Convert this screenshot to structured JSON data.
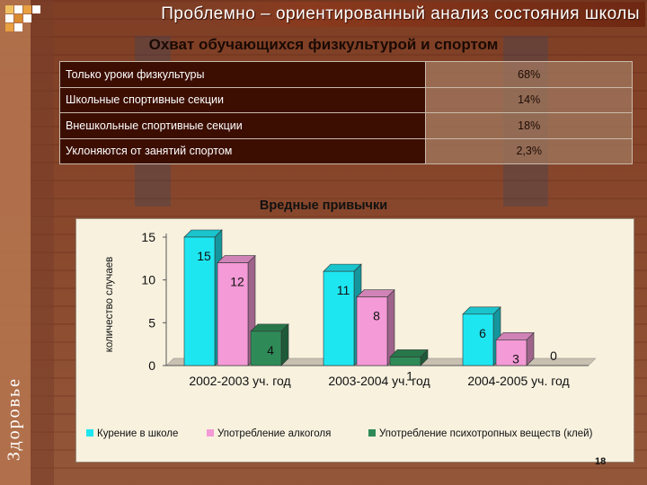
{
  "header": {
    "title": "Проблемно – ориентированный анализ состояния школы",
    "side_text": "Здоровье"
  },
  "coverage": {
    "title": "Охват обучающихся физкультурой и спортом",
    "rows": [
      {
        "label": "Только уроки физкультуры",
        "value": "68%"
      },
      {
        "label": "Школьные спортивные секции",
        "value": "14%"
      },
      {
        "label": "Внешкольные спортивные секции",
        "value": "18%"
      },
      {
        "label": "Уклоняются от занятий спортом",
        "value": "2,3%"
      }
    ]
  },
  "chart_data": {
    "type": "bar",
    "title": "Вредные привычки",
    "xlabel": "",
    "ylabel": "количество случаев",
    "ylim": [
      0,
      15
    ],
    "yticks": [
      0,
      5,
      10,
      15
    ],
    "categories": [
      "2002-2003 уч. год",
      "2003-2004 уч. год",
      "2004-2005 уч. год"
    ],
    "series": [
      {
        "name": "Курение в школе",
        "values": [
          15,
          11,
          6
        ],
        "color": "#1ee6f0"
      },
      {
        "name": "Употребление алкоголя",
        "values": [
          12,
          8,
          3
        ],
        "color": "#f49ad6"
      },
      {
        "name": "Употребление психотропных веществ (клей)",
        "values": [
          4,
          1,
          0
        ],
        "color": "#2e8b57"
      }
    ],
    "data_labels": true,
    "legend": "bottom",
    "grid": false,
    "style": "3d"
  },
  "footer": {
    "page_number": "18"
  }
}
